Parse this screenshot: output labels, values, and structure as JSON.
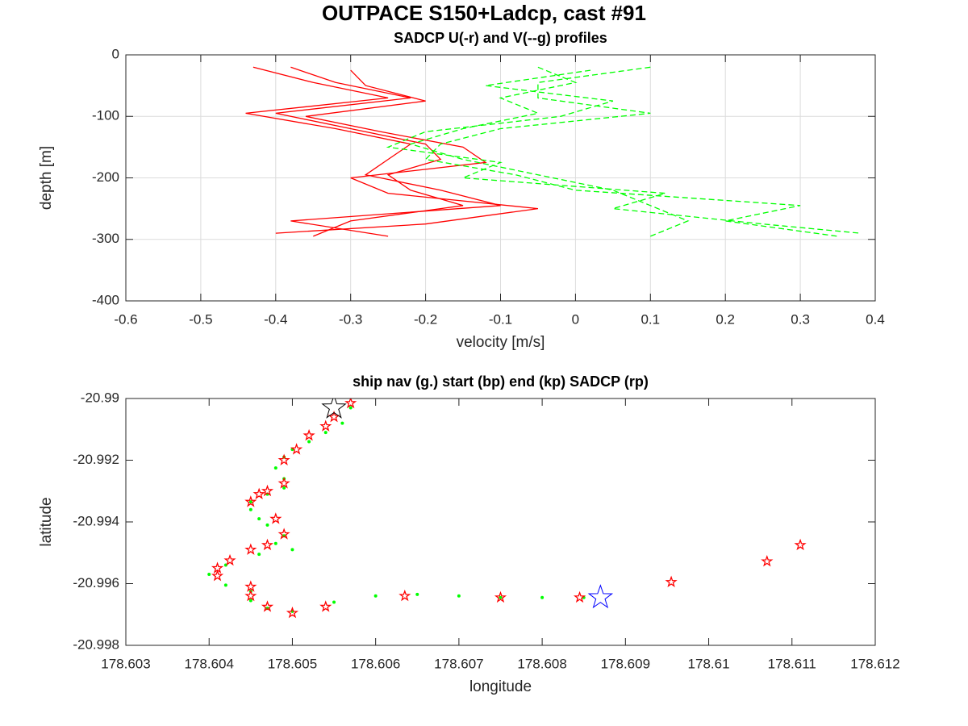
{
  "title": "OUTPACE S150+Ladcp, cast #91",
  "chart_data": [
    {
      "type": "line",
      "title": "SADCP U(-r) and V(--g) profiles",
      "xlabel": "velocity [m/s]",
      "ylabel": "depth [m]",
      "xlim": [
        -0.6,
        0.4
      ],
      "xticks": [
        -0.6,
        -0.5,
        -0.4,
        -0.3,
        -0.2,
        -0.1,
        0,
        0.1,
        0.2,
        0.3,
        0.4
      ],
      "ylim": [
        -400,
        0
      ],
      "yticks": [
        -400,
        -300,
        -200,
        -100,
        0
      ],
      "grid": true,
      "series": [
        {
          "color": "#ff0000",
          "linestyle": "solid",
          "y": [
            -20,
            -45,
            -70,
            -95,
            -120,
            -145,
            -170,
            -195,
            -220,
            -245,
            -270,
            -295
          ],
          "x": [
            -0.38,
            -0.32,
            -0.22,
            -0.4,
            -0.3,
            -0.2,
            -0.18,
            -0.25,
            -0.22,
            -0.15,
            -0.3,
            -0.35
          ]
        },
        {
          "color": "#ff0000",
          "linestyle": "solid",
          "y": [
            -20,
            -45,
            -70,
            -95,
            -120,
            -145,
            -170,
            -195,
            -220,
            -245,
            -270,
            -295
          ],
          "x": [
            -0.43,
            -0.35,
            -0.25,
            -0.44,
            -0.32,
            -0.22,
            -0.25,
            -0.28,
            -0.18,
            -0.1,
            -0.38,
            -0.25
          ]
        },
        {
          "color": "#ff0000",
          "linestyle": "solid",
          "y": [
            -25,
            -50,
            -75,
            -100,
            -125,
            -150,
            -175,
            -200,
            -225,
            -250,
            -275,
            -290
          ],
          "x": [
            -0.3,
            -0.28,
            -0.2,
            -0.36,
            -0.26,
            -0.15,
            -0.12,
            -0.3,
            -0.25,
            -0.05,
            -0.2,
            -0.4
          ]
        },
        {
          "color": "#00ff00",
          "linestyle": "dashed",
          "y": [
            -20,
            -45,
            -70,
            -95,
            -120,
            -145,
            -170,
            -195,
            -220,
            -245,
            -270,
            -295
          ],
          "x": [
            -0.05,
            0.0,
            -0.1,
            -0.05,
            -0.15,
            -0.22,
            -0.15,
            -0.05,
            0.05,
            0.1,
            0.15,
            0.1
          ]
        },
        {
          "color": "#00ff00",
          "linestyle": "dashed",
          "y": [
            -20,
            -45,
            -70,
            -95,
            -120,
            -145,
            -170,
            -195,
            -220,
            -245,
            -270,
            -295
          ],
          "x": [
            0.1,
            -0.05,
            -0.05,
            0.1,
            -0.1,
            -0.18,
            -0.2,
            -0.08,
            0.0,
            0.3,
            0.2,
            0.35
          ]
        },
        {
          "color": "#00ff00",
          "linestyle": "dashed",
          "y": [
            -25,
            -50,
            -75,
            -100,
            -125,
            -150,
            -175,
            -200,
            -225,
            -250,
            -275,
            -290
          ],
          "x": [
            0.02,
            -0.12,
            0.05,
            -0.02,
            -0.2,
            -0.25,
            -0.1,
            -0.15,
            0.12,
            0.05,
            0.25,
            0.38
          ]
        }
      ]
    },
    {
      "type": "scatter",
      "title": "ship nav (g.) start (bp) end (kp) SADCP (rp)",
      "xlabel": "longitude",
      "ylabel": "latitude",
      "xlim": [
        178.603,
        178.612
      ],
      "xticks": [
        178.603,
        178.604,
        178.605,
        178.606,
        178.607,
        178.608,
        178.609,
        178.61,
        178.611,
        178.612
      ],
      "ylim": [
        -20.998,
        -20.99
      ],
      "yticks": [
        -20.998,
        -20.996,
        -20.994,
        -20.992,
        -20.99
      ],
      "grid": false,
      "series": [
        {
          "color": "#00ff00",
          "marker": "dot",
          "x": [
            178.6085,
            178.608,
            178.6075,
            178.607,
            178.6065,
            178.606,
            178.6055,
            178.605,
            178.6047,
            178.6045,
            178.6045,
            178.6042,
            178.604,
            178.6042,
            178.6046,
            178.605,
            178.6048,
            178.6049,
            178.6047,
            178.6046,
            178.6045,
            178.6045,
            178.6047,
            178.6049,
            178.6049,
            178.6048,
            178.6049,
            178.605,
            178.6052,
            178.6054,
            178.6056,
            178.6057
          ],
          "y": [
            -20.99645,
            -20.99645,
            -20.99645,
            -20.9964,
            -20.99635,
            -20.9964,
            -20.9966,
            -20.9969,
            -20.9968,
            -20.99655,
            -20.99625,
            -20.99605,
            -20.9957,
            -20.9954,
            -20.99505,
            -20.9949,
            -20.9947,
            -20.99445,
            -20.9941,
            -20.9939,
            -20.9936,
            -20.99335,
            -20.9931,
            -20.9929,
            -20.9926,
            -20.99225,
            -20.9919,
            -20.99165,
            -20.9914,
            -20.9911,
            -20.9908,
            -20.9903
          ]
        },
        {
          "color": "#ff0000",
          "marker": "star",
          "x": [
            178.60845,
            178.6075,
            178.60635,
            178.6054,
            178.605,
            178.6047,
            178.6045,
            178.6045,
            178.6041,
            178.6041,
            178.60425,
            178.6045,
            178.6047,
            178.6049,
            178.6048,
            178.6045,
            178.6046,
            178.6047,
            178.6049,
            178.6049,
            178.60505,
            178.6052,
            178.6054,
            178.6055,
            178.6057,
            178.60955,
            178.6107,
            178.6111
          ],
          "y": [
            -20.99645,
            -20.99645,
            -20.9964,
            -20.99675,
            -20.99695,
            -20.99675,
            -20.9964,
            -20.9961,
            -20.99575,
            -20.9955,
            -20.99525,
            -20.9949,
            -20.99475,
            -20.9944,
            -20.9939,
            -20.99335,
            -20.9931,
            -20.993,
            -20.99275,
            -20.992,
            -20.99165,
            -20.9912,
            -20.9909,
            -20.9906,
            -20.99015,
            -20.99595,
            -20.99528,
            -20.99475
          ]
        },
        {
          "color": "#0000ff",
          "marker": "star",
          "x": [
            178.6087
          ],
          "y": [
            -20.99645
          ]
        },
        {
          "color": "#000000",
          "marker": "star",
          "x": [
            178.6055
          ],
          "y": [
            -20.9903
          ]
        }
      ]
    }
  ]
}
